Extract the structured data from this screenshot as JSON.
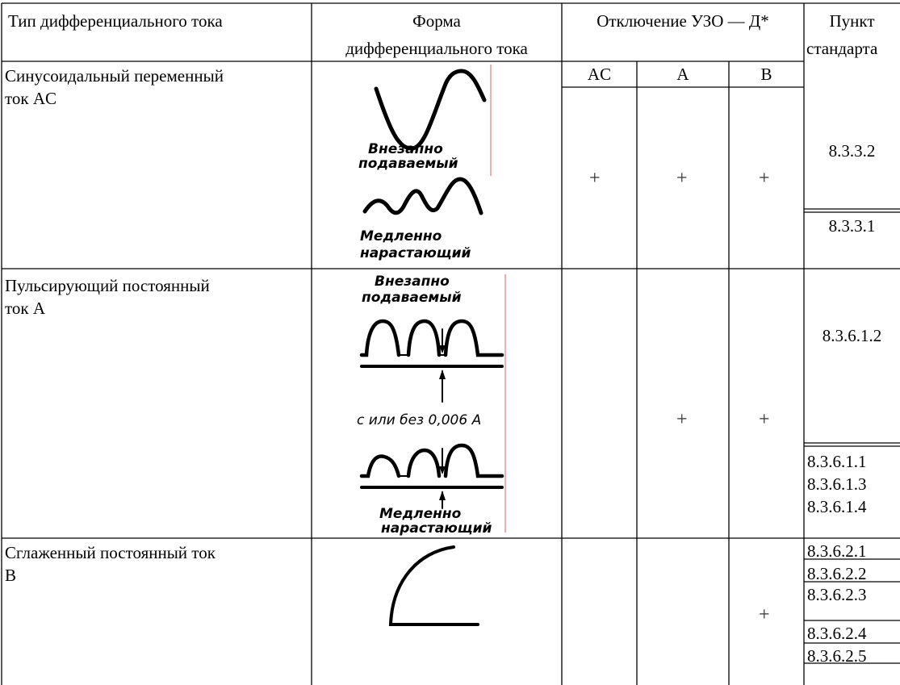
{
  "header": {
    "col1": "Тип дифференциального тока",
    "col2_line1": "Форма",
    "col2_line2": "дифференциального тока",
    "col3": "Отключение УЗО — Д*",
    "col4_line1": "Пункт",
    "col4_line2": "стандарта",
    "sub_ac": "AC",
    "sub_a": "A",
    "sub_b": "B"
  },
  "rows": [
    {
      "type_line1": "Синусоидальный переменный",
      "type_line2": "ток AC",
      "caption_sudden_1": "Внезапно",
      "caption_sudden_2": "подаваемый",
      "caption_slow_1": "Медленно",
      "caption_slow_2": "нарастающий",
      "ac": "+",
      "a": "+",
      "b": "+",
      "clauses": [
        "8.3.3.2",
        "8.3.3.1"
      ]
    },
    {
      "type_line1": "Пульсирующий постоянный",
      "type_line2": "ток A",
      "caption_sudden_1": "Внезапно",
      "caption_sudden_2": "подаваемый",
      "caption_mid": "с или без 0,006 A",
      "caption_slow_1": "Медленно",
      "caption_slow_2": "нарастающий",
      "a": "+",
      "b": "+",
      "clauses": [
        "8.3.6.1.2",
        "8.3.6.1.1",
        "8.3.6.1.3",
        "8.3.6.1.4"
      ]
    },
    {
      "type_line1": "Сглаженный постоянный ток",
      "type_line2": "B",
      "b": "+",
      "clauses": [
        "8.3.6.2.1",
        "8.3.6.2.2",
        "8.3.6.2.3",
        "8.3.6.2.4",
        "8.3.6.2.5"
      ]
    }
  ]
}
